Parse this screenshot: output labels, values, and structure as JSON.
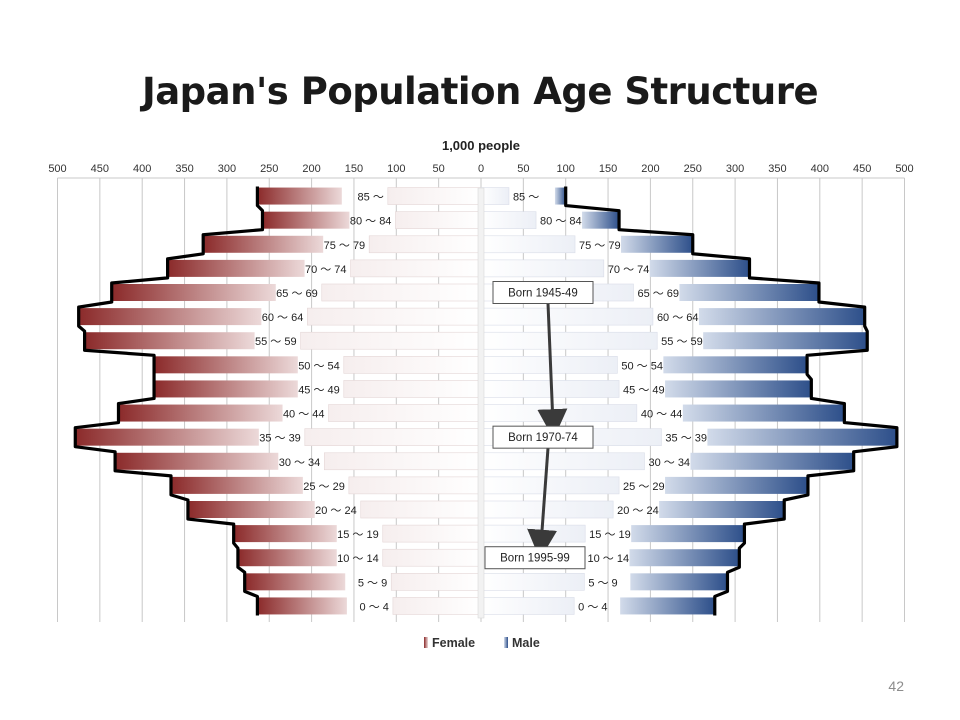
{
  "slide": {
    "title": "Japan's Population Age Structure",
    "page_number": "42"
  },
  "chart_data": {
    "type": "bar",
    "orientation": "horizontal",
    "layout": "population-pyramid",
    "unit_label": "1,000 people",
    "x_ticks": [
      "500",
      "450",
      "400",
      "350",
      "300",
      "250",
      "200",
      "150",
      "100",
      "50",
      "0",
      "50",
      "100",
      "150",
      "200",
      "250",
      "300",
      "350",
      "400",
      "450",
      "500"
    ],
    "xlim": [
      -500,
      500
    ],
    "categories": [
      "0 ～ 4",
      "5 ～ 9",
      "10 ～ 14",
      "15 ～ 19",
      "20 ～ 24",
      "25 ～ 29",
      "30 ～ 34",
      "35 ～ 39",
      "40 ～ 44",
      "45 ～ 49",
      "50 ～ 54",
      "55 ～ 59",
      "60 ～ 64",
      "65 ～ 69",
      "70 ～ 74",
      "75 ～ 79",
      "80 ～ 84",
      "85 ～"
    ],
    "series": [
      {
        "name": "Female",
        "side": "left",
        "color": "#8b2a2a",
        "light_color": "#e8d0d0",
        "values": [
          264,
          279,
          287,
          292,
          346,
          366,
          432,
          479,
          428,
          386,
          386,
          468,
          475,
          436,
          370,
          328,
          258,
          264
        ],
        "background_values": [
          104,
          106,
          116,
          116,
          142,
          156,
          185,
          208,
          180,
          162,
          162,
          213,
          205,
          188,
          154,
          132,
          101,
          110
        ]
      },
      {
        "name": "Male",
        "side": "right",
        "color": "#2d4f8a",
        "light_color": "#cfd8e8",
        "values": [
          276,
          291,
          305,
          311,
          358,
          386,
          440,
          491,
          429,
          390,
          385,
          456,
          453,
          399,
          317,
          250,
          163,
          100
        ],
        "background_values": [
          110,
          122,
          121,
          123,
          156,
          163,
          193,
          213,
          184,
          163,
          161,
          208,
          203,
          180,
          145,
          111,
          65,
          33
        ]
      }
    ],
    "envelope": {
      "color": "#000000"
    },
    "annotations": [
      {
        "text": "Born 1945-49",
        "points_to": "65 ～ 69"
      },
      {
        "text": "Born 1970-74",
        "points_to": "35 ～ 39"
      },
      {
        "text": "Born 1995-99",
        "points_to": "10 ～ 14"
      }
    ],
    "legend": {
      "position": "bottom-center",
      "entries": [
        "Female",
        "Male"
      ]
    },
    "grid": true
  }
}
